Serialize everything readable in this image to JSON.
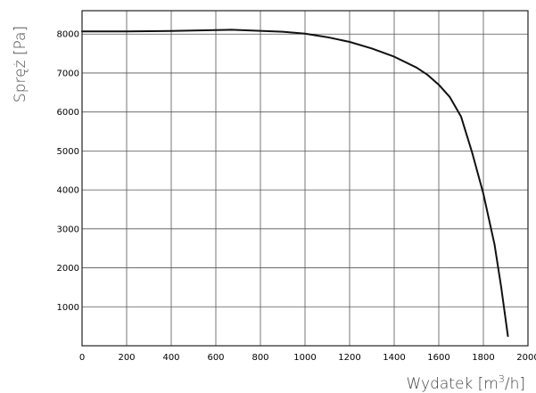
{
  "chart_data": {
    "type": "line",
    "title": "",
    "xlabel": "Wydatek [m",
    "xlabel_sup": "3",
    "xlabel_tail": "/h]",
    "ylabel": "Spręż [Pa]",
    "xlim": [
      0,
      2000
    ],
    "ylim": [
      0,
      8600
    ],
    "grid": true,
    "x_ticks": [
      0,
      200,
      400,
      600,
      800,
      1000,
      1200,
      1400,
      1600,
      1800,
      2000
    ],
    "y_ticks": [
      1000,
      2000,
      3000,
      4000,
      5000,
      6000,
      7000,
      8000
    ],
    "x_tick_labels": [
      "0",
      "200",
      "400",
      "600",
      "800",
      "1000",
      "1200",
      "1400",
      "1600",
      "1800",
      "2000"
    ],
    "y_tick_labels": [
      "1000",
      "2000",
      "3000",
      "4000",
      "5000",
      "6000",
      "7000",
      "8000"
    ],
    "colors": {
      "line": "#111111",
      "grid": "#555555",
      "frame": "#222222"
    },
    "series": [
      {
        "x": [
          0,
          200,
          400,
          670,
          900,
          1000,
          1100,
          1200,
          1300,
          1400,
          1500,
          1550,
          1600,
          1650,
          1700,
          1750,
          1800,
          1850,
          1880,
          1910
        ],
        "y": [
          8070,
          8070,
          8080,
          8110,
          8060,
          8010,
          7920,
          7800,
          7630,
          7420,
          7140,
          6950,
          6700,
          6380,
          5880,
          4950,
          3900,
          2600,
          1500,
          250
        ]
      }
    ]
  }
}
